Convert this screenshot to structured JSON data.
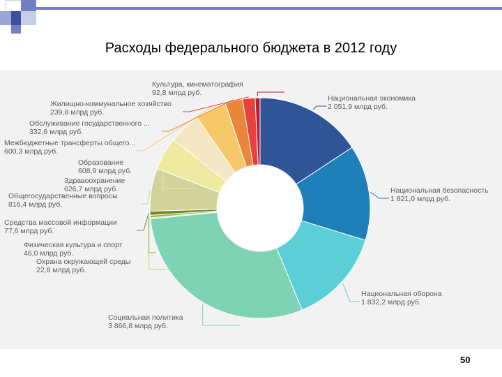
{
  "slide": {
    "title": "Расходы федерального бюджета в 2012 году",
    "page_number": "50"
  },
  "chart_data": {
    "type": "pie",
    "variant": "donut",
    "title": "Расходы федерального бюджета в 2012 году",
    "unit": "млрд руб.",
    "slices": [
      {
        "label": "Национальная экономика",
        "value_text": "2 051,9 млрд руб.",
        "value": 2051.9,
        "color": "#2f5597"
      },
      {
        "label": "Национальная безопасность",
        "value_text": "1 821,0 млрд руб.",
        "value": 1821.0,
        "color": "#1f7fb8"
      },
      {
        "label": "Национальная оборона",
        "value_text": "1 832,2 млрд руб.",
        "value": 1832.2,
        "color": "#5ccfd6"
      },
      {
        "label": "Социальная политика",
        "value_text": "3 866,8 млрд руб.",
        "value": 3866.8,
        "color": "#7ed3b4"
      },
      {
        "label": "Охрана окружающей среды",
        "value_text": "22,8 млрд руб.",
        "value": 22.8,
        "color": "#b9d774"
      },
      {
        "label": "Физическая культура и спорт",
        "value_text": "46,0 млрд руб.",
        "value": 46.0,
        "color": "#8db53b"
      },
      {
        "label": "Средства массовой информации",
        "value_text": "77,6 млрд руб.",
        "value": 77.6,
        "color": "#6e8a2c"
      },
      {
        "label": "Общегосударственные вопросы",
        "value_text": "816,4 млрд руб.",
        "value": 816.4,
        "color": "#d2d39a"
      },
      {
        "label": "Здравоохранение",
        "value_text": "626,7 млрд руб.",
        "value": 626.7,
        "color": "#eeeaa0"
      },
      {
        "label": "Образование",
        "value_text": "608,9 млрд руб.",
        "value": 608.9,
        "color": "#f5e6c4"
      },
      {
        "label": "Межбюджетные трансферты общего...",
        "value_text": "600,3 млрд руб.",
        "value": 600.3,
        "color": "#f6c86a"
      },
      {
        "label": "Обслуживание государственного ...",
        "value_text": "332,6 млрд руб.",
        "value": 332.6,
        "color": "#e8873a"
      },
      {
        "label": "Жилищно-коммунальное хозяйство",
        "value_text": "239,8 млрд руб.",
        "value": 239.8,
        "color": "#e8413c"
      },
      {
        "label": "Культура, кинематография",
        "value_text": "92,8 млрд руб.",
        "value": 92.8,
        "color": "#b0203a"
      }
    ]
  }
}
